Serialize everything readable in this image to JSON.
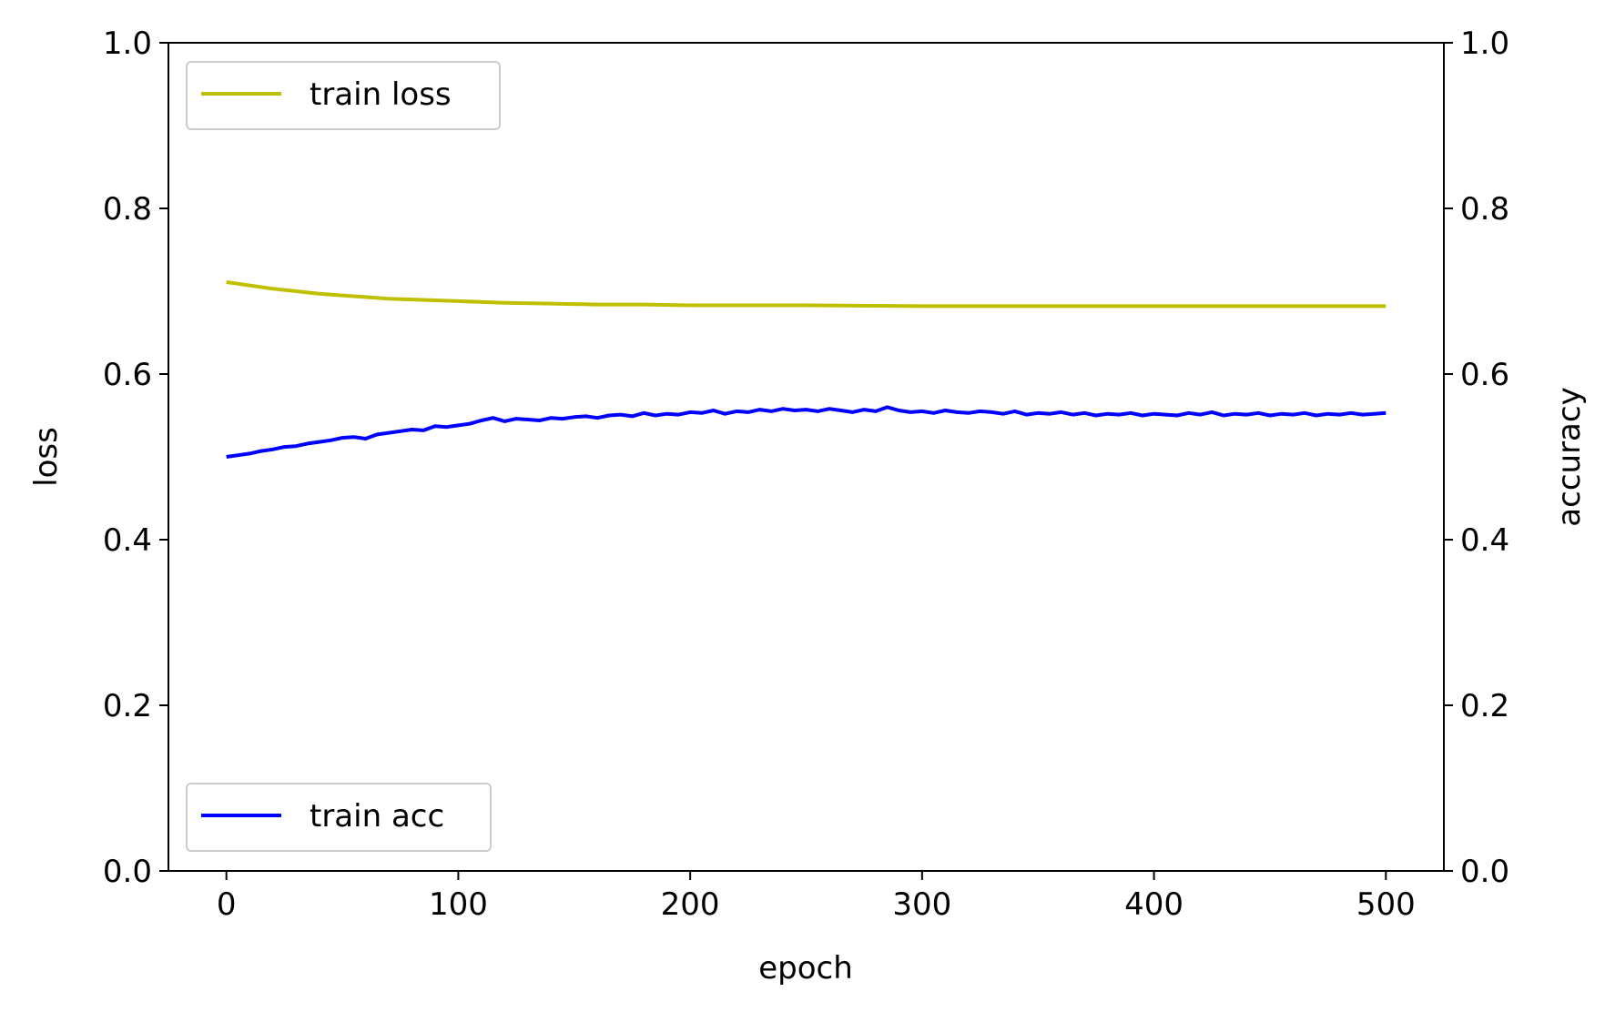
{
  "chart_data": {
    "type": "line",
    "xlabel": "epoch",
    "ylabel_left": "loss",
    "ylabel_right": "accuracy",
    "xlim": [
      -25,
      525
    ],
    "xticks": [
      0,
      100,
      200,
      300,
      400,
      500
    ],
    "ylim_left": [
      0.0,
      1.0
    ],
    "ylim_right": [
      0.0,
      1.0
    ],
    "yticks_left": [
      0.0,
      0.2,
      0.4,
      0.6,
      0.8,
      1.0
    ],
    "yticks_right": [
      0.0,
      0.2,
      0.4,
      0.6,
      0.8,
      1.0
    ],
    "grid": false,
    "series": [
      {
        "name": "train loss",
        "axis": "left",
        "color": "#bfbf00",
        "legend_position": "upper-left",
        "x": [
          0,
          10,
          20,
          30,
          40,
          50,
          60,
          70,
          80,
          90,
          100,
          120,
          140,
          160,
          180,
          200,
          250,
          300,
          350,
          400,
          450,
          500
        ],
        "values": [
          0.711,
          0.707,
          0.703,
          0.7,
          0.697,
          0.695,
          0.693,
          0.691,
          0.69,
          0.689,
          0.688,
          0.686,
          0.685,
          0.684,
          0.684,
          0.683,
          0.683,
          0.682,
          0.682,
          0.682,
          0.682,
          0.682
        ]
      },
      {
        "name": "train acc",
        "axis": "right",
        "color": "#0000ff",
        "legend_position": "lower-left",
        "x": [
          0,
          5,
          10,
          15,
          20,
          25,
          30,
          35,
          40,
          45,
          50,
          55,
          60,
          65,
          70,
          75,
          80,
          85,
          90,
          95,
          100,
          105,
          110,
          115,
          120,
          125,
          130,
          135,
          140,
          145,
          150,
          155,
          160,
          165,
          170,
          175,
          180,
          185,
          190,
          195,
          200,
          205,
          210,
          215,
          220,
          225,
          230,
          235,
          240,
          245,
          250,
          255,
          260,
          265,
          270,
          275,
          280,
          285,
          290,
          295,
          300,
          305,
          310,
          315,
          320,
          325,
          330,
          335,
          340,
          345,
          350,
          355,
          360,
          365,
          370,
          375,
          380,
          385,
          390,
          395,
          400,
          405,
          410,
          415,
          420,
          425,
          430,
          435,
          440,
          445,
          450,
          455,
          460,
          465,
          470,
          475,
          480,
          485,
          490,
          495,
          500
        ],
        "values": [
          0.5,
          0.502,
          0.504,
          0.507,
          0.509,
          0.512,
          0.513,
          0.516,
          0.518,
          0.52,
          0.523,
          0.524,
          0.522,
          0.527,
          0.529,
          0.531,
          0.533,
          0.532,
          0.537,
          0.536,
          0.538,
          0.54,
          0.544,
          0.547,
          0.543,
          0.546,
          0.545,
          0.544,
          0.547,
          0.546,
          0.548,
          0.549,
          0.547,
          0.55,
          0.551,
          0.549,
          0.553,
          0.55,
          0.552,
          0.551,
          0.554,
          0.553,
          0.556,
          0.552,
          0.555,
          0.554,
          0.557,
          0.555,
          0.558,
          0.556,
          0.557,
          0.555,
          0.558,
          0.556,
          0.554,
          0.557,
          0.555,
          0.56,
          0.556,
          0.554,
          0.555,
          0.553,
          0.556,
          0.554,
          0.553,
          0.555,
          0.554,
          0.552,
          0.555,
          0.551,
          0.553,
          0.552,
          0.554,
          0.551,
          0.553,
          0.55,
          0.552,
          0.551,
          0.553,
          0.55,
          0.552,
          0.551,
          0.55,
          0.553,
          0.551,
          0.554,
          0.55,
          0.552,
          0.551,
          0.553,
          0.55,
          0.552,
          0.551,
          0.553,
          0.55,
          0.552,
          0.551,
          0.553,
          0.551,
          0.552,
          0.553
        ]
      }
    ]
  }
}
